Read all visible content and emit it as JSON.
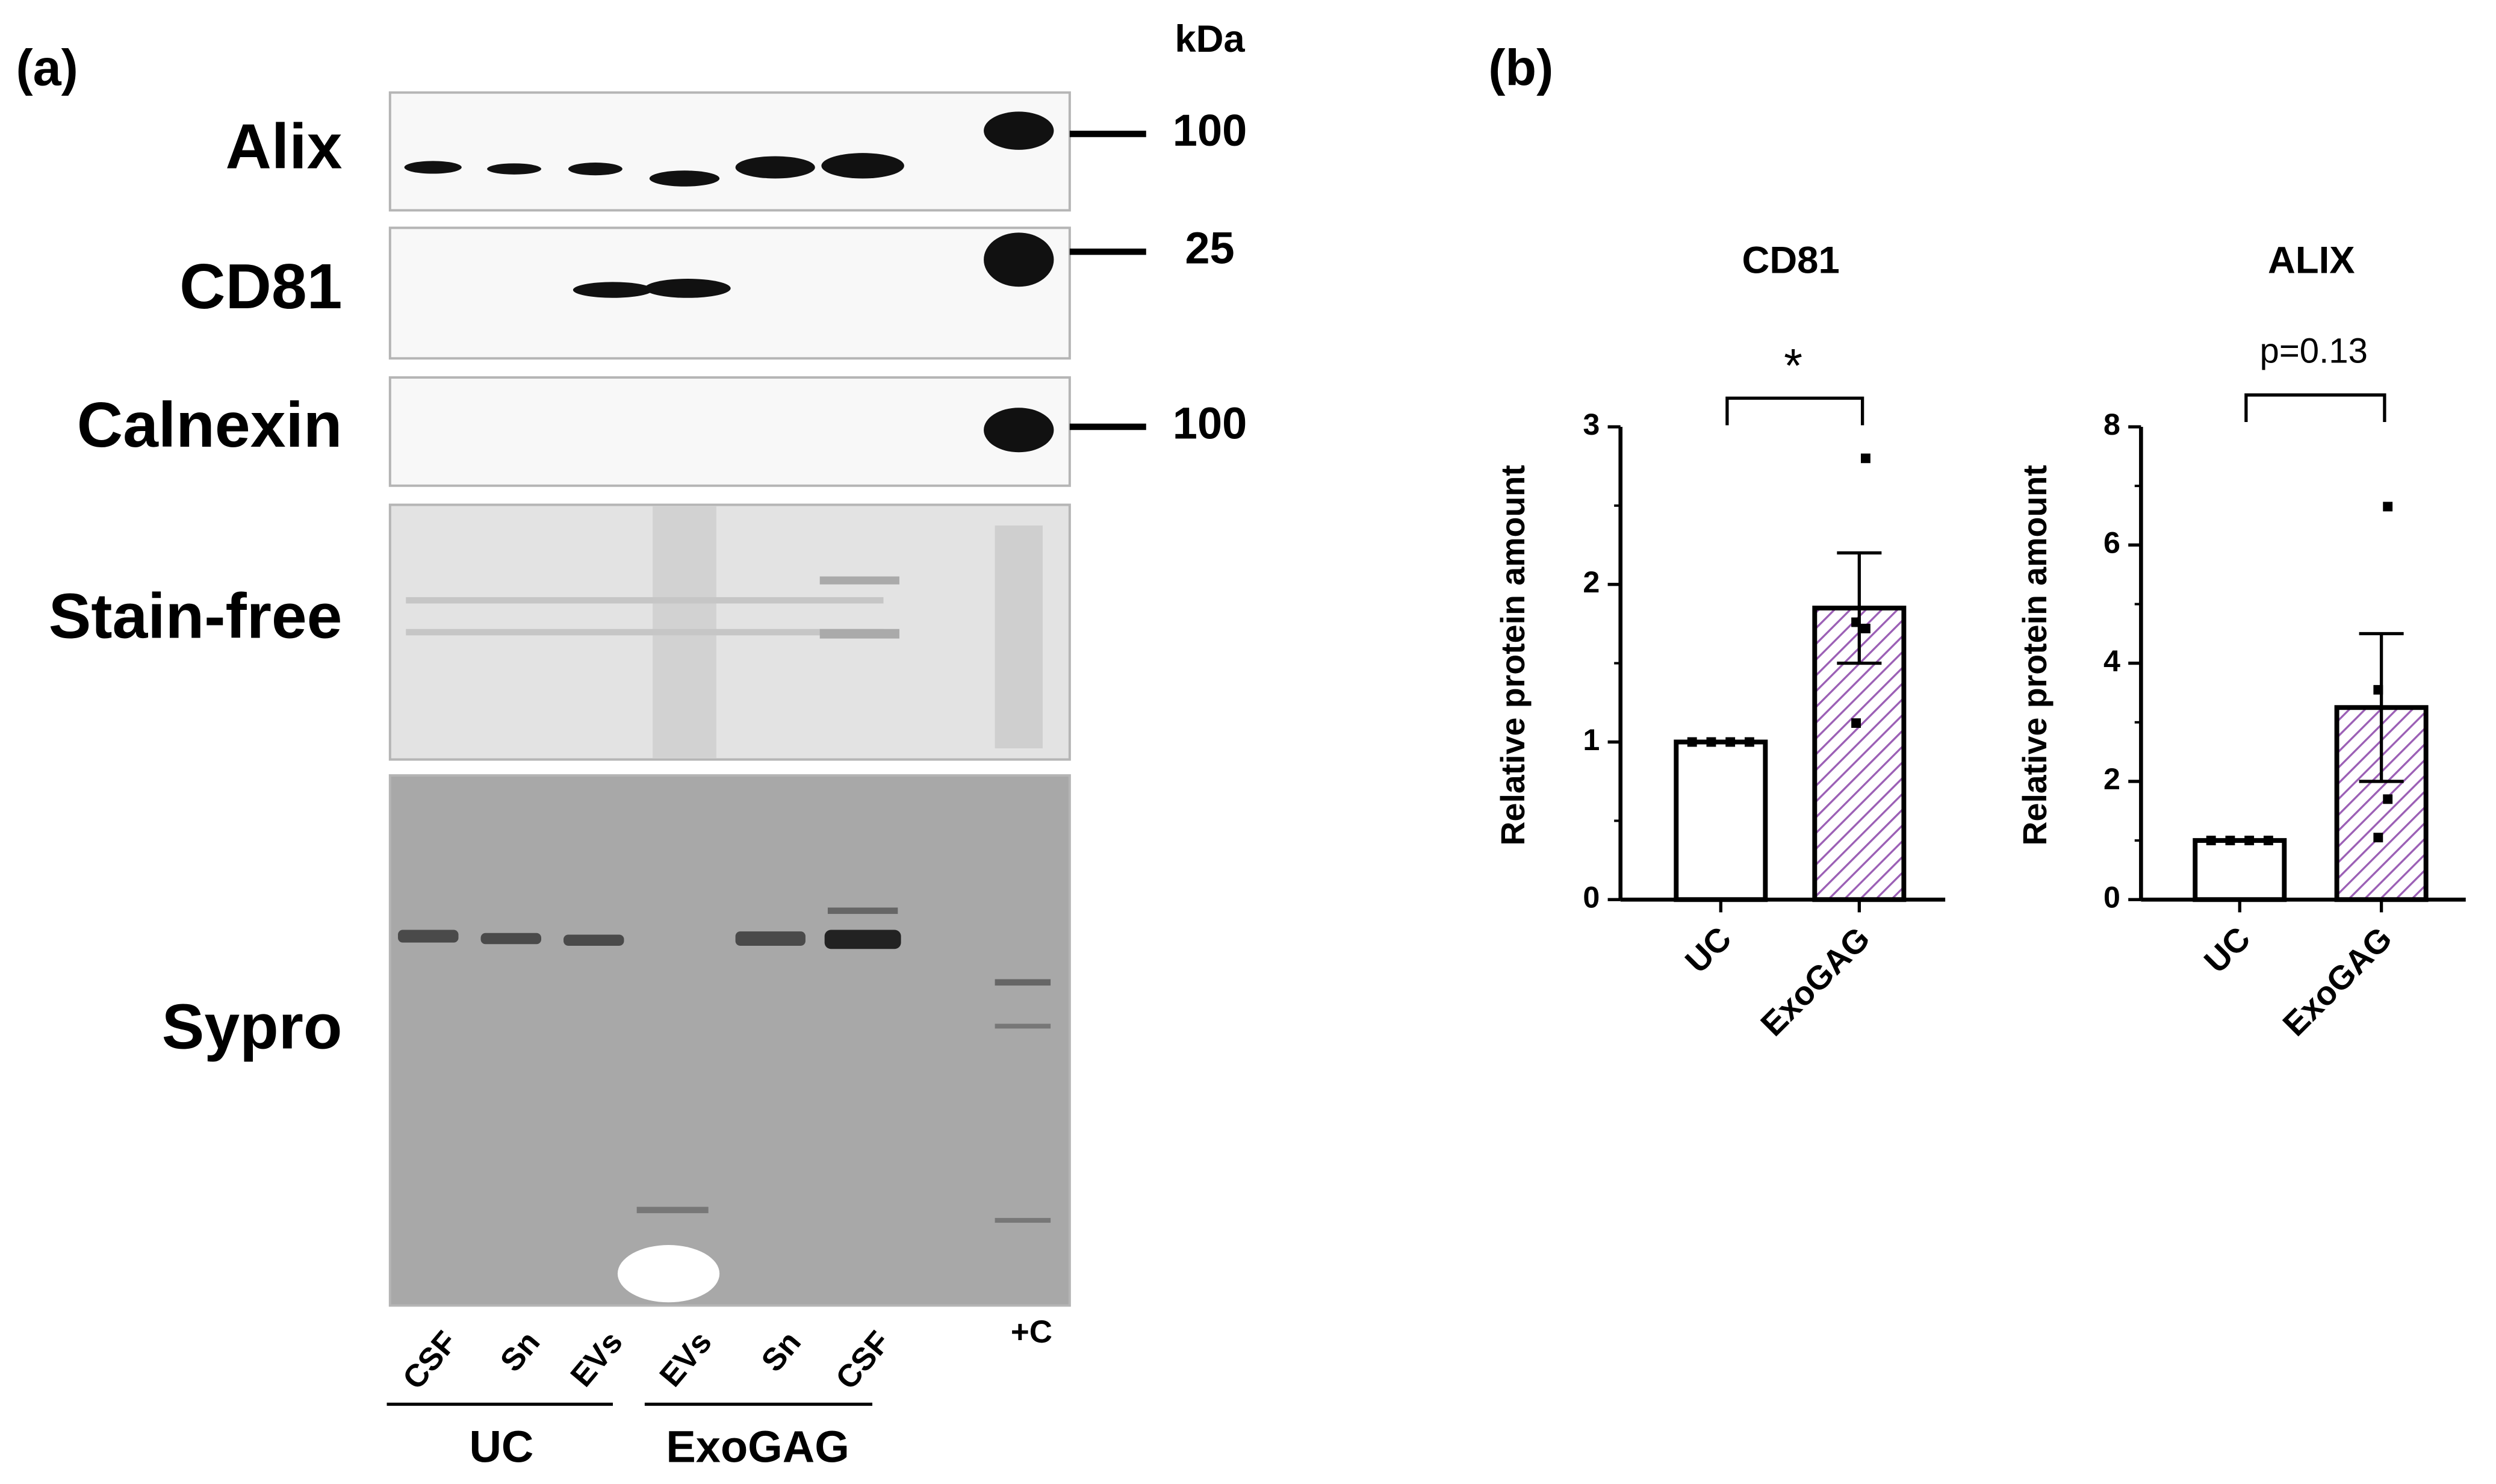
{
  "panel_a": {
    "label": "(a)",
    "kda_label": "kDa",
    "blots": [
      {
        "label": "Alix",
        "marker": 100
      },
      {
        "label": "CD81",
        "marker": 25
      },
      {
        "label": "Calnexin",
        "marker": 100
      },
      {
        "label": "Stain-free"
      },
      {
        "label": "Sypro"
      }
    ],
    "lanes": [
      "CSF",
      "Sn",
      "EVs",
      "EVs",
      "Sn",
      "CSF",
      "+C"
    ],
    "groups": [
      "UC",
      "ExoGAG"
    ]
  },
  "panel_b": {
    "label": "(b)"
  },
  "chart_data": [
    {
      "type": "bar",
      "title": "CD81",
      "ylabel": "Relative protein amount",
      "categories": [
        "UC",
        "ExoGAG"
      ],
      "values": [
        1,
        1.85
      ],
      "errors": [
        0,
        0.35
      ],
      "points": [
        [
          1,
          1,
          1,
          1
        ],
        [
          2.8,
          1.76,
          1.72,
          1.12
        ]
      ],
      "colors": [
        "#ffffff",
        "#9b5fb5"
      ],
      "hatch": [
        false,
        true
      ],
      "annotation": "*",
      "ylim": [
        0,
        3
      ],
      "yticks": [
        0,
        1,
        2,
        3
      ]
    },
    {
      "type": "bar",
      "title": "ALIX",
      "ylabel": "Relative protein amount",
      "categories": [
        "UC",
        "ExoGAG"
      ],
      "values": [
        1,
        3.25
      ],
      "errors": [
        0,
        1.25
      ],
      "points": [
        [
          1,
          1,
          1,
          1
        ],
        [
          6.65,
          3.55,
          1.7,
          1.05
        ]
      ],
      "colors": [
        "#ffffff",
        "#9b5fb5"
      ],
      "hatch": [
        false,
        true
      ],
      "annotation": "p=0.13",
      "ylim": [
        0,
        8
      ],
      "yticks": [
        0,
        2,
        4,
        6,
        8
      ]
    }
  ]
}
